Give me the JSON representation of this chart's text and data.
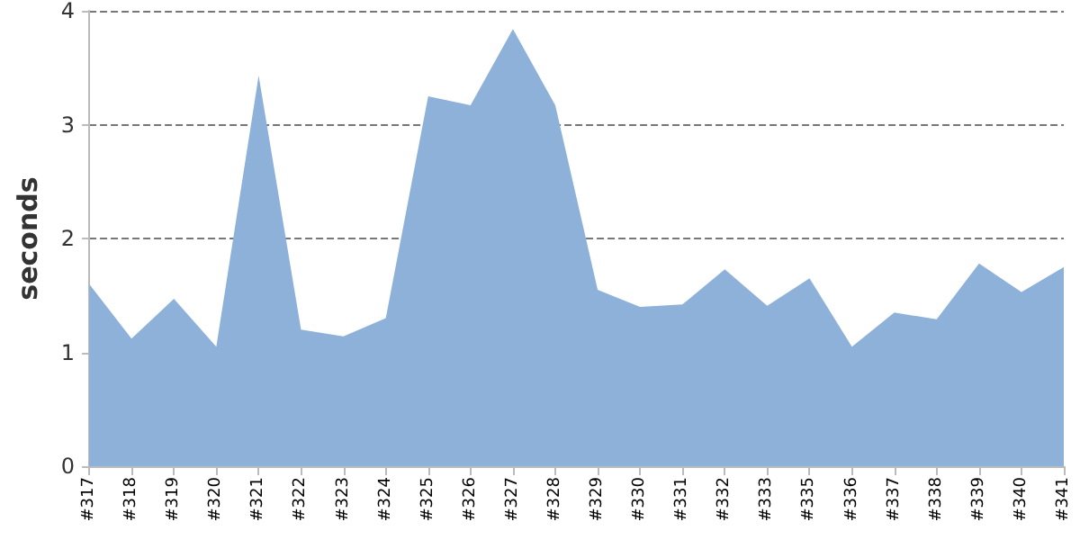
{
  "chart_data": {
    "type": "area",
    "ylabel": "seconds",
    "categories": [
      "#317",
      "#318",
      "#319",
      "#320",
      "#321",
      "#322",
      "#323",
      "#324",
      "#325",
      "#326",
      "#327",
      "#328",
      "#329",
      "#330",
      "#331",
      "#332",
      "#333",
      "#335",
      "#336",
      "#337",
      "#338",
      "#339",
      "#340",
      "#341"
    ],
    "series": [
      {
        "color": "#8eb1d9",
        "values": [
          1.6,
          1.12,
          1.47,
          1.05,
          3.43,
          1.2,
          1.14,
          1.3,
          3.25,
          3.17,
          3.84,
          3.17,
          1.55,
          1.4,
          1.42,
          1.73,
          1.41,
          1.65,
          1.05,
          1.35,
          1.29,
          1.78,
          1.53,
          1.75
        ]
      }
    ],
    "ylim": [
      0,
      4
    ],
    "yticks": [
      0,
      1,
      2,
      3,
      4
    ],
    "grid": "y",
    "marker": "none"
  }
}
